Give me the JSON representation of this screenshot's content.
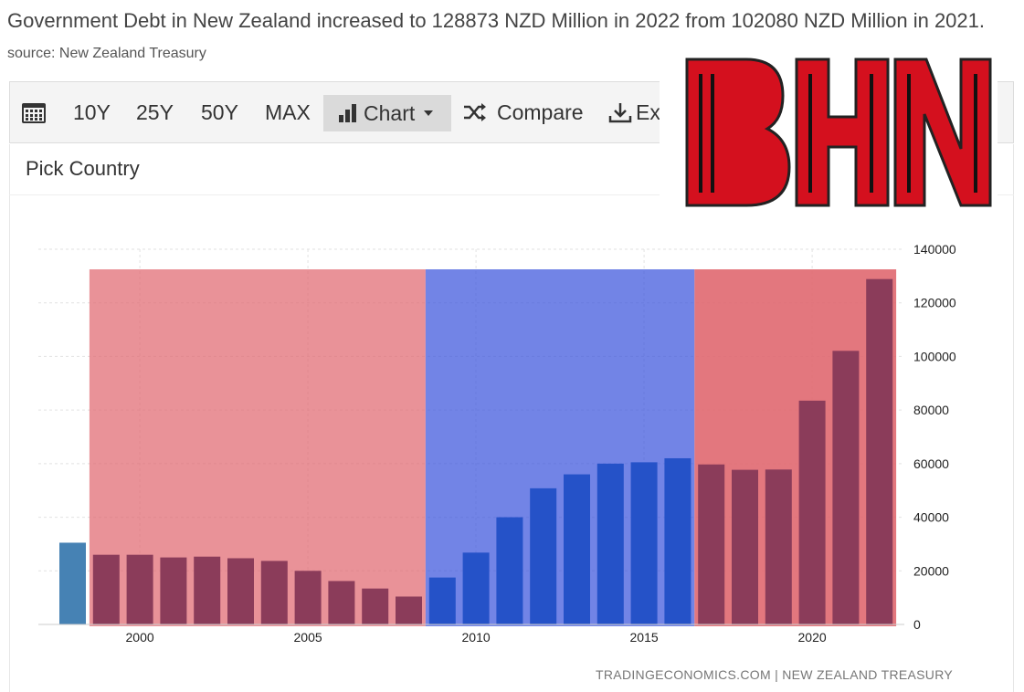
{
  "headline": {
    "text": "Government Debt in New Zealand increased to 128873 NZD Million in 2022 from 102080 NZD Million in 2021.",
    "source": "source: New Zealand Treasury"
  },
  "toolbar": {
    "calendar_icon": "calendar-icon",
    "ranges": [
      "10Y",
      "25Y",
      "50Y",
      "MAX"
    ],
    "chart_label": "Chart",
    "compare_label": "Compare",
    "export_label": "Export"
  },
  "pick_country": "Pick Country",
  "credit": "TRADINGECONOMICS.COM | NEW ZEALAND TREASURY",
  "logo_text": "BHN",
  "colors": {
    "first_bar": "#4682b4",
    "red_region": "#e06870",
    "blue_region": "#3c55dc",
    "red_bar": "#8b3c5a",
    "blue_bar": "#2552c8",
    "logo": "#d4101e"
  },
  "chart_data": {
    "type": "bar",
    "x": [
      1998,
      1999,
      2000,
      2001,
      2002,
      2003,
      2004,
      2005,
      2006,
      2007,
      2008,
      2009,
      2010,
      2011,
      2012,
      2013,
      2014,
      2015,
      2016,
      2017,
      2018,
      2019,
      2020,
      2021,
      2022
    ],
    "values": [
      30500,
      26000,
      26000,
      25000,
      25300,
      24700,
      23700,
      20000,
      16200,
      13400,
      10400,
      17500,
      26800,
      40000,
      50800,
      56000,
      60000,
      60500,
      62000,
      59700,
      57700,
      57800,
      83500,
      102080,
      128873
    ],
    "xticks": [
      2000,
      2005,
      2010,
      2015,
      2020
    ],
    "yticks": [
      0,
      20000,
      40000,
      60000,
      80000,
      100000,
      120000,
      140000
    ],
    "ylim": [
      0,
      140000
    ],
    "bands": [
      {
        "from": 1999,
        "to": 2008,
        "color": "red"
      },
      {
        "from": 2009,
        "to": 2016,
        "color": "blue"
      },
      {
        "from": 2017,
        "to": 2022,
        "color": "red"
      }
    ]
  }
}
